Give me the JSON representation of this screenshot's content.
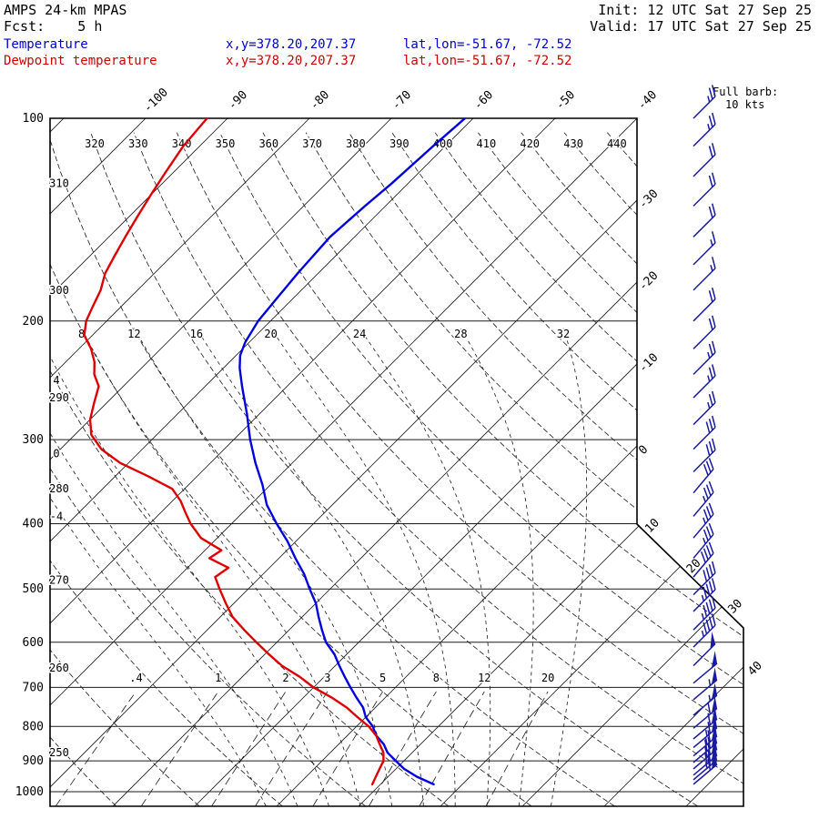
{
  "header": {
    "model": "AMPS 24-km MPAS",
    "fcst": "Fcst:    5 h",
    "init": "Init: 12 UTC Sat 27 Sep 25",
    "valid": "Valid: 17 UTC Sat 27 Sep 25",
    "temp_label": "Temperature",
    "dewp_label": "Dewpoint temperature",
    "xy": "x,y=378.20,207.37",
    "latlon": "lat,lon=-51.67, -72.52",
    "barb1": "Full barb:",
    "barb2": "10 kts"
  },
  "colors": {
    "temperature": "#0000dd",
    "dewpoint": "#dd0000",
    "wind_barbs": "#1a1aa0",
    "grid": "#1a1a1a",
    "header_blue": "#0000cd",
    "header_red": "#cd0000"
  },
  "chart_data": {
    "type": "skewt-logp-sounding",
    "title": "AMPS 24-km MPAS forecast sounding",
    "pressure_axis_hpa": {
      "min": 100,
      "max": 1050,
      "labels": [
        100,
        200,
        300,
        400,
        500,
        600,
        700,
        800,
        900,
        1000
      ]
    },
    "isotherms_c": {
      "min": -110,
      "max": 50,
      "step": 10
    },
    "isotherm_labels_top": [
      -100,
      -90,
      -80,
      -70,
      -60,
      -50,
      -40
    ],
    "isotherm_labels_right": [
      -30,
      -20,
      -10,
      0,
      10,
      20,
      30,
      40
    ],
    "dry_adiabats_k": {
      "min": 250,
      "max": 500,
      "step": 10
    },
    "dry_adiabat_labels_top": [
      320,
      330,
      340,
      350,
      360,
      370,
      380,
      390,
      400,
      410,
      420,
      430,
      440
    ],
    "dry_adiabat_labels_left": [
      250,
      260,
      270,
      280,
      290,
      300,
      310
    ],
    "moist_adiabats_c": [
      -4,
      0,
      4,
      8,
      12,
      16,
      20,
      24,
      28,
      32
    ],
    "mixing_ratios_gkg": [
      {
        "v": 0.4,
        "label": ".4"
      },
      {
        "v": 1,
        "label": "1"
      },
      {
        "v": 2,
        "label": "2"
      },
      {
        "v": 3,
        "label": "3"
      },
      {
        "v": 5,
        "label": "5"
      },
      {
        "v": 8,
        "label": "8"
      },
      {
        "v": 12,
        "label": "12"
      },
      {
        "v": 20,
        "label": "20"
      }
    ],
    "temperature_profile_p_t": [
      [
        975,
        16.5
      ],
      [
        950,
        13.5
      ],
      [
        925,
        11
      ],
      [
        900,
        9
      ],
      [
        875,
        7
      ],
      [
        850,
        5.5
      ],
      [
        825,
        3.5
      ],
      [
        800,
        2
      ],
      [
        775,
        0
      ],
      [
        750,
        -1.5
      ],
      [
        725,
        -3.5
      ],
      [
        700,
        -5.5
      ],
      [
        675,
        -7.5
      ],
      [
        650,
        -9.5
      ],
      [
        625,
        -11.5
      ],
      [
        600,
        -14
      ],
      [
        575,
        -16
      ],
      [
        550,
        -18
      ],
      [
        525,
        -20
      ],
      [
        500,
        -22.5
      ],
      [
        475,
        -25
      ],
      [
        450,
        -28
      ],
      [
        425,
        -31
      ],
      [
        400,
        -34.5
      ],
      [
        375,
        -38
      ],
      [
        350,
        -41
      ],
      [
        325,
        -44.5
      ],
      [
        300,
        -48
      ],
      [
        275,
        -51.5
      ],
      [
        250,
        -55.5
      ],
      [
        235,
        -58
      ],
      [
        225,
        -59.5
      ],
      [
        215,
        -60.5
      ],
      [
        200,
        -61.5
      ],
      [
        185,
        -62
      ],
      [
        170,
        -62.5
      ],
      [
        150,
        -63
      ],
      [
        135,
        -62.5
      ],
      [
        125,
        -62
      ],
      [
        110,
        -61.5
      ],
      [
        100,
        -61
      ]
    ],
    "dewpoint_profile_p_t": [
      [
        975,
        9
      ],
      [
        950,
        8.5
      ],
      [
        925,
        8
      ],
      [
        900,
        7.5
      ],
      [
        875,
        6.5
      ],
      [
        850,
        5
      ],
      [
        825,
        3.5
      ],
      [
        800,
        1.5
      ],
      [
        775,
        -1
      ],
      [
        750,
        -3.5
      ],
      [
        725,
        -6.5
      ],
      [
        700,
        -10
      ],
      [
        675,
        -13
      ],
      [
        650,
        -16.5
      ],
      [
        625,
        -19.5
      ],
      [
        600,
        -22.5
      ],
      [
        575,
        -25.5
      ],
      [
        550,
        -28.5
      ],
      [
        525,
        -31
      ],
      [
        500,
        -33.5
      ],
      [
        480,
        -35.5
      ],
      [
        465,
        -35
      ],
      [
        450,
        -38.5
      ],
      [
        438,
        -38
      ],
      [
        420,
        -42
      ],
      [
        400,
        -45
      ],
      [
        385,
        -47
      ],
      [
        370,
        -49
      ],
      [
        355,
        -51.5
      ],
      [
        340,
        -56
      ],
      [
        325,
        -61
      ],
      [
        310,
        -65
      ],
      [
        295,
        -68
      ],
      [
        280,
        -70
      ],
      [
        265,
        -71.5
      ],
      [
        250,
        -73
      ],
      [
        240,
        -75
      ],
      [
        230,
        -76.5
      ],
      [
        220,
        -78.5
      ],
      [
        210,
        -81
      ],
      [
        200,
        -82.5
      ],
      [
        190,
        -83.5
      ],
      [
        180,
        -84.5
      ],
      [
        170,
        -86
      ],
      [
        160,
        -87
      ],
      [
        150,
        -88
      ],
      [
        140,
        -89
      ],
      [
        130,
        -90
      ],
      [
        120,
        -91
      ],
      [
        110,
        -92
      ],
      [
        100,
        -92.5
      ]
    ],
    "wind_profile_p_kts_dir": [
      [
        100,
        25,
        45
      ],
      [
        110,
        25,
        45
      ],
      [
        122,
        20,
        45
      ],
      [
        135,
        20,
        45
      ],
      [
        150,
        20,
        45
      ],
      [
        165,
        15,
        45
      ],
      [
        180,
        15,
        45
      ],
      [
        200,
        20,
        45
      ],
      [
        220,
        20,
        45
      ],
      [
        240,
        25,
        45
      ],
      [
        260,
        25,
        45
      ],
      [
        285,
        25,
        45
      ],
      [
        310,
        30,
        45
      ],
      [
        335,
        30,
        45
      ],
      [
        360,
        30,
        40
      ],
      [
        390,
        35,
        40
      ],
      [
        420,
        35,
        40
      ],
      [
        450,
        35,
        40
      ],
      [
        480,
        40,
        40
      ],
      [
        510,
        40,
        45
      ],
      [
        540,
        45,
        45
      ],
      [
        575,
        45,
        45
      ],
      [
        610,
        45,
        45
      ],
      [
        650,
        50,
        45
      ],
      [
        690,
        50,
        50
      ],
      [
        730,
        55,
        50
      ],
      [
        770,
        55,
        50
      ],
      [
        805,
        60,
        50
      ],
      [
        835,
        60,
        50
      ],
      [
        860,
        65,
        50
      ],
      [
        885,
        65,
        50
      ],
      [
        905,
        70,
        50
      ],
      [
        925,
        70,
        50
      ],
      [
        945,
        70,
        50
      ],
      [
        960,
        65,
        50
      ],
      [
        975,
        60,
        50
      ]
    ]
  }
}
